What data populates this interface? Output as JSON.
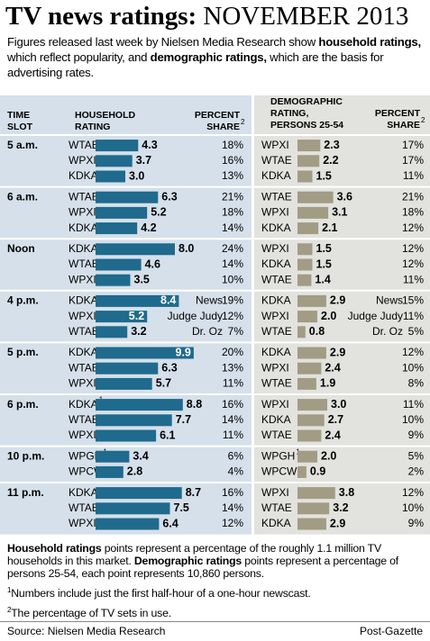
{
  "title": "TV news ratings:",
  "title_date": "NOVEMBER 2013",
  "intro": [
    "Figures released last week by Nielsen Media Research show ",
    "household ratings,",
    " which reflect popularity, and ",
    "demographic ratings,",
    " which are the basis for advertising rates."
  ],
  "headers": {
    "time_slot": [
      "TIME",
      "SLOT"
    ],
    "household_rating": [
      "HOUSEHOLD",
      "RATING"
    ],
    "share": [
      "PERCENT",
      "SHARE"
    ],
    "share_note": "2",
    "demographic_rating": [
      "DEMOGRAPHIC",
      "RATING,",
      "PERSONS 25-54"
    ],
    "demo_share": [
      "PERCENT",
      "SHARE"
    ],
    "demo_share_note": "2"
  },
  "slots": [
    {
      "time": "5 a.m.",
      "household": [
        {
          "station": "WTAE",
          "rating": 4.3,
          "share": "18%"
        },
        {
          "station": "WPXI",
          "rating": 3.7,
          "share": "16%"
        },
        {
          "station": "KDKA",
          "rating": 3.0,
          "rating_label": "3.0",
          "share": "13%"
        }
      ],
      "demographic": [
        {
          "station": "WPXI",
          "rating": 2.3,
          "share": "17%"
        },
        {
          "station": "WTAE",
          "rating": 2.2,
          "share": "17%"
        },
        {
          "station": "KDKA",
          "rating": 1.5,
          "share": "11%"
        }
      ]
    },
    {
      "time": "6 a.m.",
      "household": [
        {
          "station": "WTAE",
          "rating": 6.3,
          "share": "21%"
        },
        {
          "station": "WPXI",
          "rating": 5.2,
          "share": "18%"
        },
        {
          "station": "KDKA",
          "rating": 4.2,
          "share": "14%"
        }
      ],
      "demographic": [
        {
          "station": "WTAE",
          "rating": 3.6,
          "share": "21%"
        },
        {
          "station": "WPXI",
          "rating": 3.1,
          "share": "18%"
        },
        {
          "station": "KDKA",
          "rating": 2.1,
          "share": "12%"
        }
      ]
    },
    {
      "time": "Noon",
      "household": [
        {
          "station": "KDKA",
          "rating": 8.0,
          "rating_label": "8.0",
          "share": "24%"
        },
        {
          "station": "WTAE",
          "rating": 4.6,
          "share": "14%"
        },
        {
          "station": "WPXI",
          "rating": 3.5,
          "share": "10%"
        }
      ],
      "demographic": [
        {
          "station": "WPXI",
          "rating": 1.5,
          "share": "12%"
        },
        {
          "station": "KDKA",
          "rating": 1.5,
          "share": "12%"
        },
        {
          "station": "WTAE",
          "rating": 1.4,
          "share": "11%"
        }
      ]
    },
    {
      "time": "4 p.m.",
      "household": [
        {
          "station": "KDKA",
          "rating": 8.4,
          "program": "News",
          "share": "19%"
        },
        {
          "station": "WPXI",
          "rating": 5.2,
          "program": "Judge Judy",
          "share": "12%"
        },
        {
          "station": "WTAE",
          "rating": 3.2,
          "program": "Dr. Oz",
          "share": "7%"
        }
      ],
      "demographic": [
        {
          "station": "KDKA",
          "rating": 2.9,
          "program": "News",
          "share": "15%"
        },
        {
          "station": "WPXI",
          "rating": 2.0,
          "rating_label": "2.0",
          "program": "Judge Judy",
          "share": "11%"
        },
        {
          "station": "WTAE",
          "rating": 0.8,
          "program": "Dr. Oz",
          "share": "5%"
        }
      ]
    },
    {
      "time": "5 p.m.",
      "household": [
        {
          "station": "KDKA",
          "rating": 9.9,
          "share": "20%"
        },
        {
          "station": "WTAE",
          "rating": 6.3,
          "share": "13%"
        },
        {
          "station": "WPXI",
          "rating": 5.7,
          "share": "11%"
        }
      ],
      "demographic": [
        {
          "station": "KDKA",
          "rating": 2.9,
          "share": "12%"
        },
        {
          "station": "WPXI",
          "rating": 2.4,
          "share": "10%"
        },
        {
          "station": "WTAE",
          "rating": 1.9,
          "share": "8%"
        }
      ]
    },
    {
      "time": "6 p.m.",
      "household": [
        {
          "station": "KDKA",
          "station_note": "1",
          "rating": 8.8,
          "share": "16%"
        },
        {
          "station": "WTAE",
          "rating": 7.7,
          "share": "14%"
        },
        {
          "station": "WPXI",
          "rating": 6.1,
          "share": "11%"
        }
      ],
      "demographic": [
        {
          "station": "WPXI",
          "rating": 3.0,
          "rating_label": "3.0",
          "share": "11%"
        },
        {
          "station": "KDKA",
          "rating": 2.7,
          "share": "10%"
        },
        {
          "station": "WTAE",
          "rating": 2.4,
          "share": "9%"
        }
      ]
    },
    {
      "time": "10 p.m.",
      "household": [
        {
          "station": "WPGH",
          "station_note": "1",
          "rating": 3.4,
          "share": "6%"
        },
        {
          "station": "WPCW",
          "rating": 2.8,
          "share": "4%"
        }
      ],
      "demographic": [
        {
          "station": "WPGH",
          "station_note": "1",
          "rating": 2.0,
          "rating_label": "2.0",
          "share": "5%"
        },
        {
          "station": "WPCW",
          "rating": 0.9,
          "share": "2%"
        }
      ]
    },
    {
      "time": "11 p.m.",
      "household": [
        {
          "station": "KDKA",
          "rating": 8.7,
          "share": "16%"
        },
        {
          "station": "WTAE",
          "rating": 7.5,
          "share": "14%"
        },
        {
          "station": "WPXI",
          "rating": 6.4,
          "share": "12%"
        }
      ],
      "demographic": [
        {
          "station": "WPXI",
          "rating": 3.8,
          "share": "12%"
        },
        {
          "station": "WTAE",
          "rating": 3.2,
          "share": "10%"
        },
        {
          "station": "KDKA",
          "rating": 2.9,
          "share": "9%"
        }
      ]
    }
  ],
  "explanation": [
    "Household ratings",
    " points represent a percentage of the roughly 1.1 million TV households in this market. ",
    "Demographic ratings",
    " points represent a percentage of persons 25-54, each point represents 10,860 persons."
  ],
  "footnotes": [
    {
      "mark": "1",
      "text": "Numbers include just the first half-hour of a one-hour newscast."
    },
    {
      "mark": "2",
      "text": "The percentage of TV sets in use."
    }
  ],
  "source": "Source: Nielsen Media Research",
  "credit": "Post-Gazette"
}
